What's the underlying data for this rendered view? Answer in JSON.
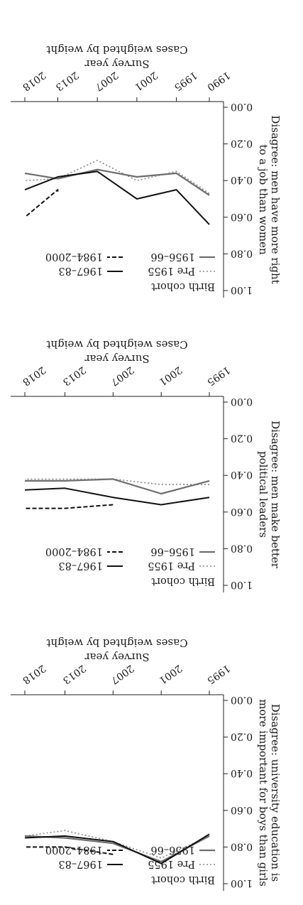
{
  "chart_data": [
    {
      "type": "line",
      "title": "",
      "ylabel": [
        "Disagree: men have more right",
        "to a job than women"
      ],
      "xlabel": "Survey year",
      "xlabel2": "Cases weighted by weight",
      "ylim": [
        0,
        1
      ],
      "yticks": [
        "0.00",
        "0.20",
        "0.40",
        "0.60",
        "0.80",
        "1.00"
      ],
      "xticks": [
        "1990",
        "1995",
        "2001",
        "2007",
        "2013",
        "2018"
      ],
      "legend_title": "Birth cohort",
      "series": [
        {
          "name": "Pre 1955",
          "style": "dotted",
          "color": "#888888",
          "points": [
            [
              1990,
              0.47
            ],
            [
              1995,
              0.35
            ],
            [
              2001,
              0.4
            ],
            [
              2007,
              0.29
            ],
            [
              2013,
              0.39
            ],
            [
              2018,
              0.4
            ]
          ]
        },
        {
          "name": "1956–66",
          "style": "solid",
          "color": "#6e6e6e",
          "points": [
            [
              1990,
              0.48
            ],
            [
              1995,
              0.36
            ],
            [
              2001,
              0.38
            ],
            [
              2007,
              0.34
            ],
            [
              2013,
              0.39
            ],
            [
              2018,
              0.36
            ]
          ]
        },
        {
          "name": "1967–83",
          "style": "solid",
          "color": "#111111",
          "points": [
            [
              1990,
              0.64
            ],
            [
              1995,
              0.45
            ],
            [
              2001,
              0.5
            ],
            [
              2007,
              0.35
            ],
            [
              2013,
              0.38
            ],
            [
              2018,
              0.45
            ]
          ]
        },
        {
          "name": "1984–2000",
          "style": "dashed",
          "color": "#111111",
          "points": [
            [
              2013,
              0.46
            ],
            [
              2013,
              0.45
            ],
            [
              2018,
              0.6
            ]
          ]
        }
      ]
    },
    {
      "type": "line",
      "title": "",
      "ylabel": [
        "Disagree: men make better",
        "political leaders"
      ],
      "xlabel": "Survey year",
      "xlabel2": "Cases weighted by weight",
      "ylim": [
        0,
        1
      ],
      "yticks": [
        "0.00",
        "0.20",
        "0.40",
        "0.60",
        "0.80",
        "1.00"
      ],
      "xticks": [
        "1995",
        "2001",
        "2007",
        "2013",
        "2018"
      ],
      "legend_title": "Birth cohort",
      "series": [
        {
          "name": "Pre 1955",
          "style": "dotted",
          "color": "#888888",
          "points": [
            [
              1995,
              0.45
            ],
            [
              2001,
              0.45
            ],
            [
              2007,
              0.42
            ],
            [
              2013,
              0.42
            ],
            [
              2018,
              0.42
            ]
          ]
        },
        {
          "name": "1956–66",
          "style": "solid",
          "color": "#6e6e6e",
          "points": [
            [
              1995,
              0.43
            ],
            [
              2001,
              0.5
            ],
            [
              2007,
              0.42
            ],
            [
              2013,
              0.43
            ],
            [
              2018,
              0.43
            ]
          ]
        },
        {
          "name": "1967–83",
          "style": "solid",
          "color": "#111111",
          "points": [
            [
              1995,
              0.52
            ],
            [
              2001,
              0.56
            ],
            [
              2007,
              0.52
            ],
            [
              2013,
              0.47
            ],
            [
              2018,
              0.48
            ]
          ]
        },
        {
          "name": "1984–2000",
          "style": "dashed",
          "color": "#111111",
          "points": [
            [
              2007,
              0.56
            ],
            [
              2013,
              0.58
            ],
            [
              2018,
              0.58
            ]
          ]
        }
      ]
    },
    {
      "type": "line",
      "title": "",
      "ylabel": [
        "Disagree: university education is",
        "more important for boys than girls"
      ],
      "xlabel": "Survey year",
      "xlabel2": "Cases weighted by weight",
      "ylim": [
        0,
        1
      ],
      "yticks": [
        "0.00",
        "0.20",
        "0.40",
        "0.60",
        "0.80",
        "1.00"
      ],
      "xticks": [
        "1995",
        "2001",
        "2007",
        "2013",
        "2018"
      ],
      "legend_title": "Birth cohort",
      "series": [
        {
          "name": "Pre 1955",
          "style": "dotted",
          "color": "#888888",
          "points": [
            [
              1995,
              0.74
            ],
            [
              2001,
              0.86
            ],
            [
              2007,
              0.77
            ],
            [
              2013,
              0.71
            ],
            [
              2018,
              0.74
            ]
          ]
        },
        {
          "name": "1956–66",
          "style": "solid",
          "color": "#6e6e6e",
          "points": [
            [
              1995,
              0.74
            ],
            [
              2001,
              0.88
            ],
            [
              2007,
              0.78
            ],
            [
              2013,
              0.75
            ],
            [
              2018,
              0.74
            ]
          ]
        },
        {
          "name": "1967–83",
          "style": "solid",
          "color": "#111111",
          "points": [
            [
              1995,
              0.73
            ],
            [
              2001,
              0.89
            ],
            [
              2007,
              0.77
            ],
            [
              2013,
              0.74
            ],
            [
              2018,
              0.75
            ]
          ]
        },
        {
          "name": "1984–2000",
          "style": "dashed",
          "color": "#111111",
          "points": [
            [
              2007,
              0.84
            ],
            [
              2013,
              0.8
            ],
            [
              2018,
              0.8
            ]
          ]
        }
      ]
    }
  ]
}
